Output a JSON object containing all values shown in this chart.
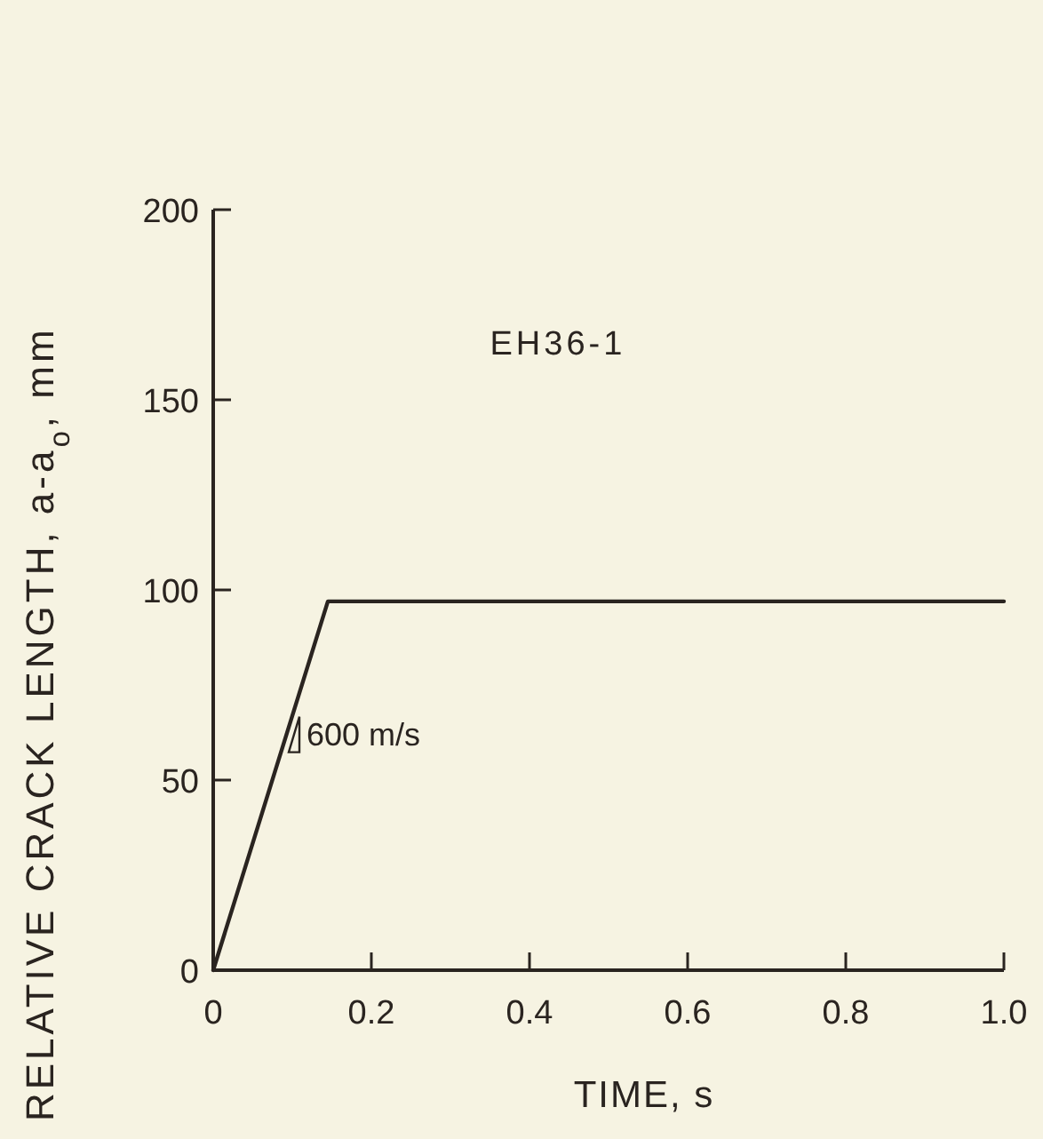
{
  "chart_data": {
    "type": "line",
    "title": "EH36-1",
    "xlabel": "TIME, s",
    "ylabel": "RELATIVE CRACK LENGTH, a-a$_{o}$, mm",
    "x": [
      0,
      0.145,
      1.0
    ],
    "series": [
      {
        "color": "#2a2420",
        "values": [
          0,
          97,
          97
        ]
      }
    ],
    "xlim": [
      0,
      1.0
    ],
    "ylim": [
      0,
      200
    ],
    "xticks": [
      0,
      0.2,
      0.4,
      0.6,
      0.8,
      {
        "value": 1,
        "label": "1.0"
      }
    ],
    "yticks": [
      0,
      50,
      100,
      150,
      200
    ],
    "annotations": [
      {
        "text": "600 m/s",
        "x": 0.1,
        "y": 62
      }
    ],
    "grid": false,
    "marker": "none",
    "line_style": "solid"
  }
}
